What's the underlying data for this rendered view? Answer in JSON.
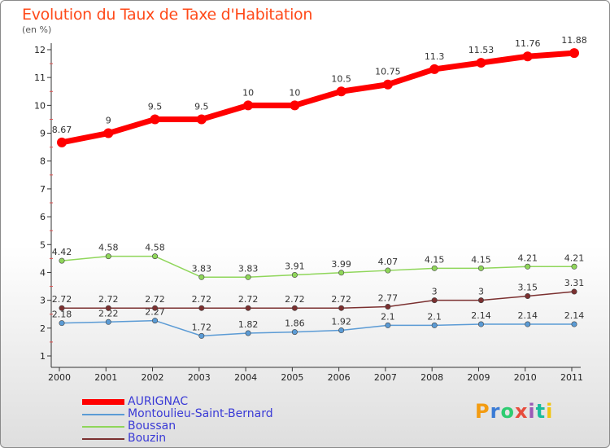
{
  "header": {
    "title": "Evolution du Taux de Taxe d'Habitation",
    "unit": "(en %)"
  },
  "logo": {
    "text": "Proxiti",
    "colors": [
      "#f39c12",
      "#3a7bd5",
      "#2ecc71",
      "#e74c3c",
      "#9b59b6",
      "#1abc9c",
      "#f1c40f"
    ]
  },
  "chart_data": {
    "type": "line",
    "title": "Evolution du Taux de Taxe d'Habitation",
    "ylabel": "(en %)",
    "xlabel": "",
    "x": [
      "2000",
      "2001",
      "2002",
      "2003",
      "2004",
      "2005",
      "2006",
      "2007",
      "2008",
      "2009",
      "2010",
      "2011"
    ],
    "ylim": [
      1,
      12
    ],
    "yticks": [
      1,
      2,
      3,
      4,
      5,
      6,
      7,
      8,
      9,
      10,
      11,
      12
    ],
    "grid": false,
    "legend_position": "bottom-left",
    "series": [
      {
        "name": "AURIGNAC",
        "color": "#ff0000",
        "width": 7,
        "values": [
          8.67,
          9,
          9.5,
          9.5,
          10,
          10,
          10.5,
          10.75,
          11.3,
          11.53,
          11.76,
          11.88
        ],
        "labels": [
          "8.67",
          "9",
          "9.5",
          "9.5",
          "10",
          "10",
          "10.5",
          "10.75",
          "11.3",
          "11.53",
          "11.76",
          "11.88"
        ]
      },
      {
        "name": "Montoulieu-Saint-Bernard",
        "color": "#5b9bd5",
        "width": 1.5,
        "values": [
          2.18,
          2.22,
          2.27,
          1.72,
          1.82,
          1.86,
          1.92,
          2.1,
          2.1,
          2.14,
          2.14,
          2.14
        ],
        "labels": [
          "2.18",
          "2.22",
          "2.27",
          "1.72",
          "1.82",
          "1.86",
          "1.92",
          "2.1",
          "2.1",
          "2.14",
          "2.14",
          "2.14"
        ]
      },
      {
        "name": "Boussan",
        "color": "#8fd65a",
        "width": 1.5,
        "values": [
          4.42,
          4.58,
          4.58,
          3.83,
          3.83,
          3.91,
          3.99,
          4.07,
          4.15,
          4.15,
          4.21,
          4.21
        ],
        "labels": [
          "4.42",
          "4.58",
          "4.58",
          "3.83",
          "3.83",
          "3.91",
          "3.99",
          "4.07",
          "4.15",
          "4.15",
          "4.21",
          "4.21"
        ]
      },
      {
        "name": "Bouzin",
        "color": "#7b3030",
        "width": 1.5,
        "values": [
          2.72,
          2.72,
          2.72,
          2.72,
          2.72,
          2.72,
          2.72,
          2.77,
          3,
          3,
          3.15,
          3.31
        ],
        "labels": [
          "2.72",
          "2.72",
          "2.72",
          "2.72",
          "2.72",
          "2.72",
          "2.72",
          "2.77",
          "3",
          "3",
          "3.15",
          "3.31"
        ]
      }
    ]
  }
}
